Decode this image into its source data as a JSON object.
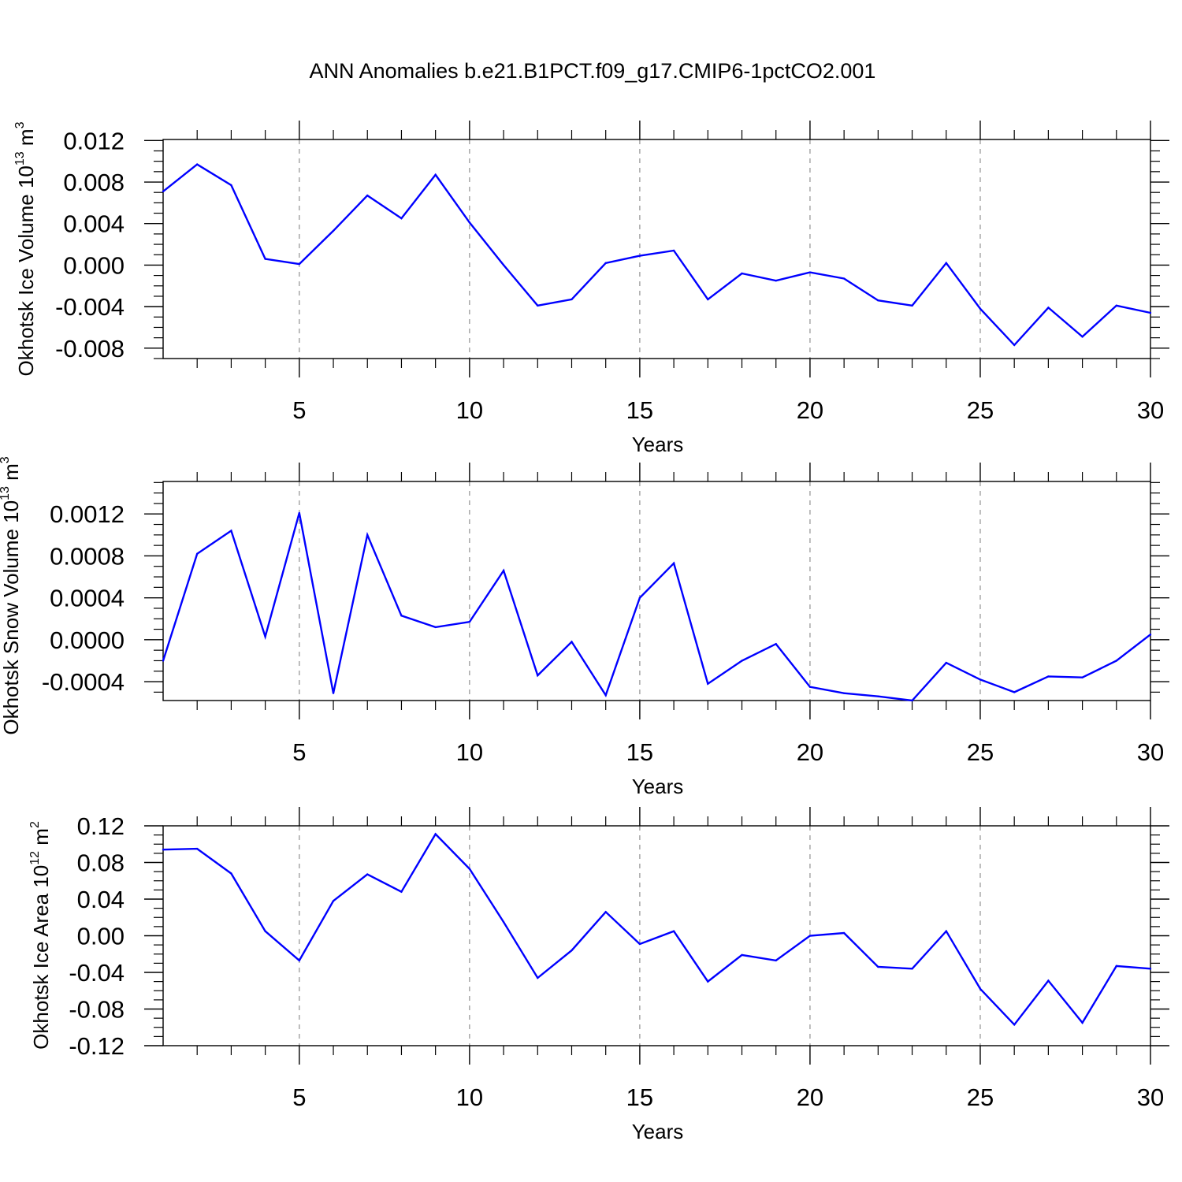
{
  "title": "ANN Anomalies b.e21.B1PCT.f09_g17.CMIP6-1pctCO2.001",
  "colors": {
    "line": "#0000ff",
    "frame": "#000000",
    "grid": "#999999"
  },
  "chart_data": [
    {
      "type": "line",
      "ylabel": "Okhotsk Ice Volume 10",
      "ylabel_exp": "13",
      "ylabel_unit": " m",
      "ylabel_unit_exp": "3",
      "xlabel": "Years",
      "xlim": [
        1,
        30
      ],
      "ylim": [
        -0.009,
        0.0121
      ],
      "xticks": [
        5,
        10,
        15,
        20,
        25,
        30
      ],
      "yticks": [
        -0.008,
        -0.004,
        0.0,
        0.004,
        0.008,
        0.012
      ],
      "ytick_labels": [
        "-0.008",
        "-0.004",
        "0.000",
        "0.004",
        "0.008",
        "0.012"
      ],
      "x": [
        1,
        2,
        3,
        4,
        5,
        6,
        7,
        8,
        9,
        10,
        11,
        12,
        13,
        14,
        15,
        16,
        17,
        18,
        19,
        20,
        21,
        22,
        23,
        24,
        25,
        26,
        27,
        28,
        29,
        30
      ],
      "y": [
        0.0071,
        0.0097,
        0.0077,
        0.0006,
        0.0001,
        0.0033,
        0.0067,
        0.0045,
        0.0087,
        0.0041,
        0.0,
        -0.0039,
        -0.0033,
        0.0002,
        0.0009,
        0.0014,
        -0.0033,
        -0.0008,
        -0.0015,
        -0.0007,
        -0.0013,
        -0.0034,
        -0.0039,
        0.0002,
        -0.0042,
        -0.0077,
        -0.0041,
        -0.0069,
        -0.0039,
        -0.0046
      ],
      "grid": "vertical dashed at major x ticks"
    },
    {
      "type": "line",
      "ylabel": "Okhotsk Snow Volume 10",
      "ylabel_exp": "13",
      "ylabel_unit": " m",
      "ylabel_unit_exp": "3",
      "xlabel": "Years",
      "xlim": [
        1,
        30
      ],
      "ylim": [
        -0.00058,
        0.00151
      ],
      "xticks": [
        5,
        10,
        15,
        20,
        25,
        30
      ],
      "yticks": [
        -0.0004,
        0.0,
        0.0004,
        0.0008,
        0.0012
      ],
      "ytick_labels": [
        "-0.0004",
        "0.0000",
        "0.0004",
        "0.0008",
        "0.0012"
      ],
      "x": [
        1,
        2,
        3,
        4,
        5,
        6,
        7,
        8,
        9,
        10,
        11,
        12,
        13,
        14,
        15,
        16,
        17,
        18,
        19,
        20,
        21,
        22,
        23,
        24,
        25,
        26,
        27,
        28,
        29,
        30
      ],
      "y": [
        -0.0002,
        0.00082,
        0.00104,
        3e-05,
        0.00121,
        -0.00051,
        0.001,
        0.00023,
        0.00012,
        0.00017,
        0.00066,
        -0.00034,
        -2e-05,
        -0.00053,
        0.0004,
        0.00073,
        -0.00042,
        -0.0002,
        -4e-05,
        -0.00045,
        -0.00051,
        -0.00054,
        -0.00058,
        -0.00022,
        -0.00038,
        -0.0005,
        -0.00035,
        -0.00036,
        -0.0002,
        5e-05
      ],
      "grid": "vertical dashed at major x ticks"
    },
    {
      "type": "line",
      "ylabel": "Okhotsk Ice Area 10",
      "ylabel_exp": "12",
      "ylabel_unit": " m",
      "ylabel_unit_exp": "2",
      "xlabel": "Years",
      "xlim": [
        1,
        30
      ],
      "ylim": [
        -0.12,
        0.12
      ],
      "xticks": [
        5,
        10,
        15,
        20,
        25,
        30
      ],
      "yticks": [
        -0.12,
        -0.08,
        -0.04,
        0.0,
        0.04,
        0.08,
        0.12
      ],
      "ytick_labels": [
        "-0.12",
        "-0.08",
        "-0.04",
        "0.00",
        "0.04",
        "0.08",
        "0.12"
      ],
      "x": [
        1,
        2,
        3,
        4,
        5,
        6,
        7,
        8,
        9,
        10,
        11,
        12,
        13,
        14,
        15,
        16,
        17,
        18,
        19,
        20,
        21,
        22,
        23,
        24,
        25,
        26,
        27,
        28,
        29,
        30
      ],
      "y": [
        0.094,
        0.095,
        0.068,
        0.005,
        -0.027,
        0.038,
        0.067,
        0.048,
        0.111,
        0.073,
        0.015,
        -0.046,
        -0.016,
        0.026,
        -0.009,
        0.005,
        -0.05,
        -0.021,
        -0.027,
        0.0,
        0.003,
        -0.034,
        -0.036,
        0.005,
        -0.058,
        -0.097,
        -0.049,
        -0.095,
        -0.033,
        -0.036
      ],
      "grid": "vertical dashed at major x ticks"
    }
  ]
}
